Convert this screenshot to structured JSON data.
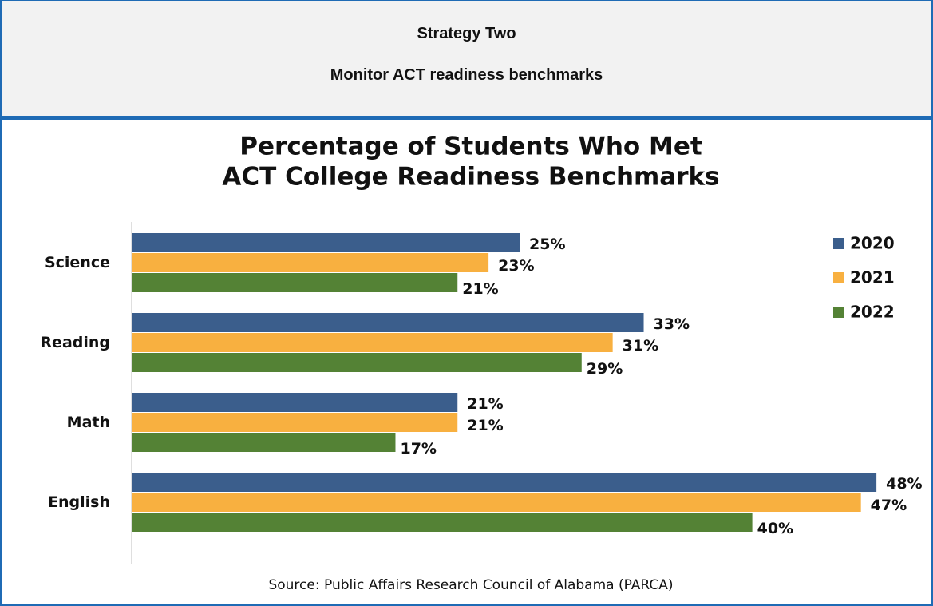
{
  "header": {
    "title": "Strategy Two",
    "subtitle": "Monitor ACT readiness benchmarks"
  },
  "chart_data": {
    "type": "hbar",
    "title": [
      "Percentage of Students Who Met",
      "ACT College Readiness Benchmarks"
    ],
    "categories": [
      "Science",
      "Reading",
      "Math",
      "English"
    ],
    "series": [
      {
        "name": "2020",
        "color": "#3b5e8c",
        "values": [
          25,
          33,
          21,
          48
        ],
        "value_labels": [
          "25%",
          "33%",
          "21%",
          "48%"
        ]
      },
      {
        "name": "2021",
        "color": "#f8b040",
        "values": [
          23,
          31,
          21,
          47
        ],
        "value_labels": [
          "23%",
          "31%",
          "21%",
          "47%"
        ]
      },
      {
        "name": "2022",
        "color": "#548235",
        "values": [
          21,
          29,
          17,
          40
        ],
        "value_labels": [
          "21%",
          "29%",
          "17%",
          "40%"
        ]
      }
    ],
    "xlim": [
      0,
      50
    ],
    "legend": "top-right",
    "source": "Source: Public Affairs Research Council of Alabama (PARCA)"
  }
}
